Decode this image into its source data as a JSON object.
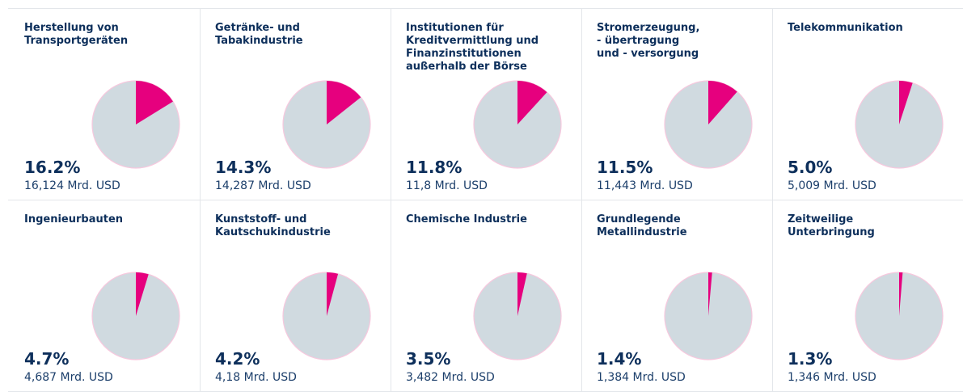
{
  "chart_data": [
    {
      "type": "pie",
      "title": "Herstellung von\nTransportgeräten",
      "values": [
        16.2
      ],
      "value_labels": [
        "16.2%"
      ],
      "annotation": "16,124 Mrd. USD",
      "color": "#e6007e"
    },
    {
      "type": "pie",
      "title": "Getränke- und\nTabakindustrie",
      "values": [
        14.3
      ],
      "value_labels": [
        "14.3%"
      ],
      "annotation": "14,287 Mrd. USD",
      "color": "#e6007e"
    },
    {
      "type": "pie",
      "title": "Institutionen für\nKreditvermittlung und\nFinanzinstitutionen\naußerhalb der Börse",
      "values": [
        11.8
      ],
      "value_labels": [
        "11.8%"
      ],
      "annotation": "11,8 Mrd. USD",
      "color": "#e6007e"
    },
    {
      "type": "pie",
      "title": "Stromerzeugung,\n- übertragung\nund - versorgung",
      "values": [
        11.5
      ],
      "value_labels": [
        "11.5%"
      ],
      "annotation": "11,443 Mrd. USD",
      "color": "#e6007e"
    },
    {
      "type": "pie",
      "title": "Telekommunikation",
      "values": [
        5.0
      ],
      "value_labels": [
        "5.0%"
      ],
      "annotation": "5,009 Mrd. USD",
      "color": "#e6007e"
    },
    {
      "type": "pie",
      "title": "Ingenieurbauten",
      "values": [
        4.7
      ],
      "value_labels": [
        "4.7%"
      ],
      "annotation": "4,687 Mrd. USD",
      "color": "#e6007e"
    },
    {
      "type": "pie",
      "title": "Kunststoff- und\nKautschukindustrie",
      "values": [
        4.2
      ],
      "value_labels": [
        "4.2%"
      ],
      "annotation": "4,18 Mrd. USD",
      "color": "#e6007e"
    },
    {
      "type": "pie",
      "title": "Chemische Industrie",
      "values": [
        3.5
      ],
      "value_labels": [
        "3.5%"
      ],
      "annotation": "3,482 Mrd. USD",
      "color": "#e6007e"
    },
    {
      "type": "pie",
      "title": "Grundlegende\nMetallindustrie",
      "values": [
        1.4
      ],
      "value_labels": [
        "1.4%"
      ],
      "annotation": "1,384 Mrd. USD",
      "color": "#e6007e"
    },
    {
      "type": "pie",
      "title": "Zeitweilige\nUnterbringung",
      "values": [
        1.3
      ],
      "value_labels": [
        "1.3%"
      ],
      "annotation": "1,346 Mrd. USD",
      "color": "#e6007e"
    }
  ]
}
